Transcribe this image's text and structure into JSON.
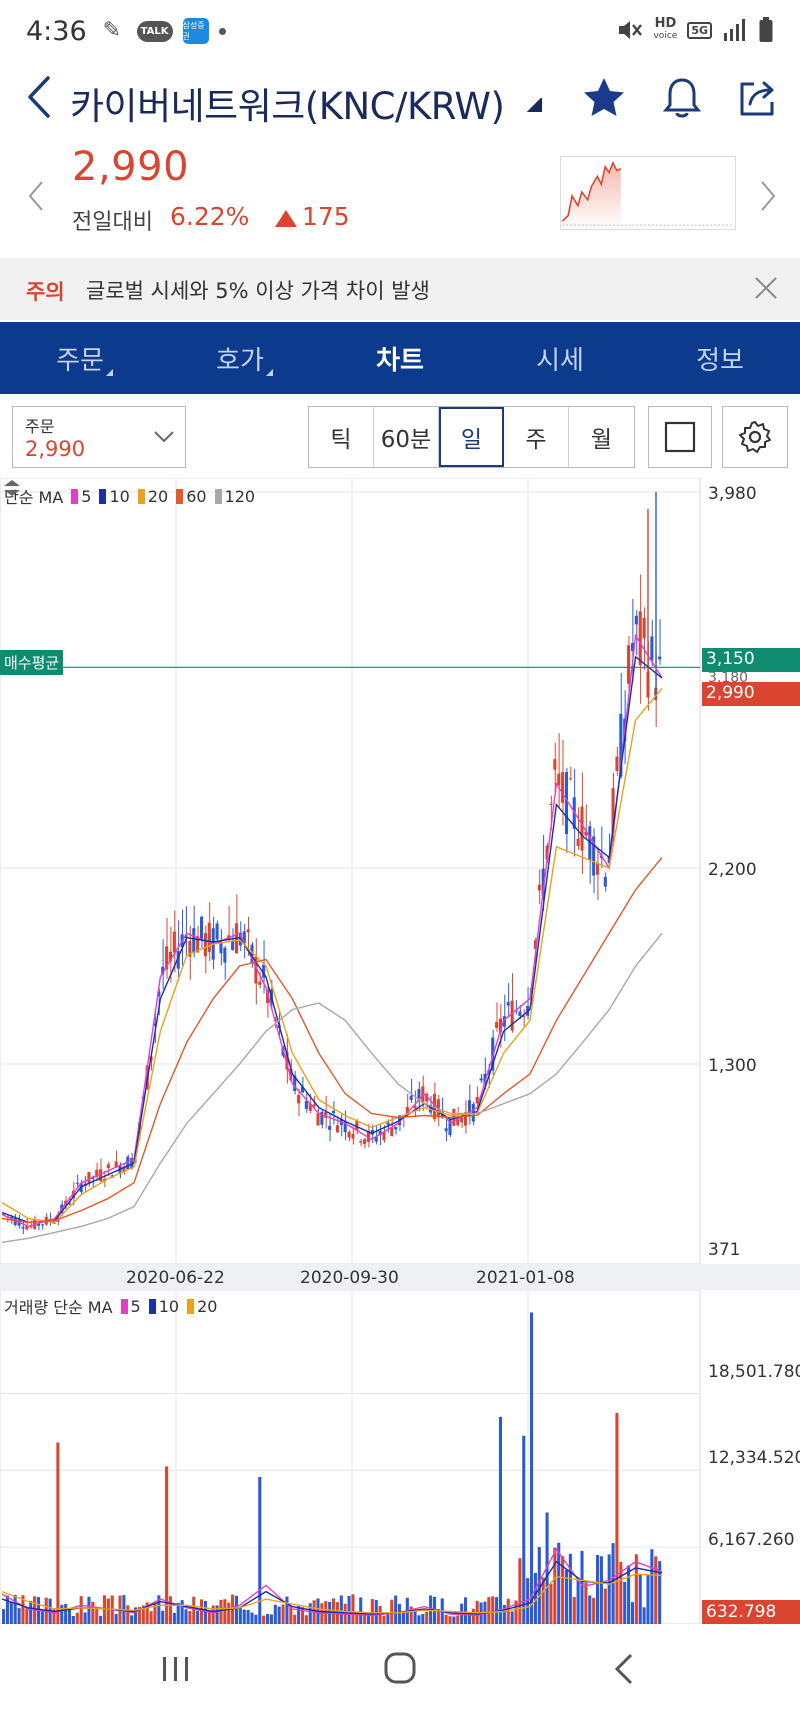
{
  "status": {
    "time": "4:36",
    "talk": "TALK",
    "app_badge": "삼성증권",
    "hd": "HD",
    "voice": "voice",
    "net": "5G"
  },
  "header": {
    "title": "카이버네트워크(KNC/KRW)"
  },
  "price": {
    "current": "2,990",
    "change_label": "전일대비",
    "change_pct": "6.22%",
    "change_value": "175"
  },
  "notice": {
    "tag": "주의",
    "text": "글로벌 시세와 5% 이상 가격 차이 발생"
  },
  "tabs": [
    {
      "label": "주문"
    },
    {
      "label": "호가"
    },
    {
      "label": "차트"
    },
    {
      "label": "시세"
    },
    {
      "label": "정보"
    }
  ],
  "toolbar": {
    "order_label": "주문",
    "order_value": "2,990",
    "periods": [
      {
        "label": "틱"
      },
      {
        "label": "60분"
      },
      {
        "label": "일"
      },
      {
        "label": "주"
      },
      {
        "label": "월"
      }
    ]
  },
  "chart": {
    "price_legend_prefix": "단순 MA",
    "price_legend": [
      {
        "label": "5",
        "color": "#e43fc4"
      },
      {
        "label": "10",
        "color": "#1a2fa8"
      },
      {
        "label": "20",
        "color": "#e8a317"
      },
      {
        "label": "60",
        "color": "#e4582a"
      },
      {
        "label": "120",
        "color": "#a8a8a8"
      }
    ],
    "price_axis": [
      "3,980",
      "2,200",
      "1,300",
      "371"
    ],
    "partial_label": "3,180",
    "avg_label": "매수평균",
    "avg_price": "3,150",
    "last_price": "2,990",
    "dates": [
      "2020-06-22",
      "2020-09-30",
      "2021-01-08"
    ],
    "volume_legend_prefix": "거래량 단순 MA",
    "volume_legend": [
      {
        "label": "5",
        "color": "#e43fc4"
      },
      {
        "label": "10",
        "color": "#1a2fa8"
      },
      {
        "label": "20",
        "color": "#e8a317"
      }
    ],
    "volume_axis": [
      "18,501.780",
      "12,334.520",
      "6,167.260"
    ],
    "last_volume": "632.798"
  },
  "colors": {
    "accent": "#0c3a8d",
    "up": "#d9452f",
    "down": "#2a5bd7",
    "avg_line": "#0f8c70"
  },
  "chart_data": {
    "type": "line",
    "x_ticks": [
      "2020-06-22",
      "2020-09-30",
      "2021-01-08"
    ],
    "y_ticks": [
      3980,
      2200,
      1300,
      371
    ],
    "volume_ticks": [
      18501.78,
      12334.52,
      6167.26
    ],
    "reference_lines": [
      {
        "label": "매수평균",
        "value": 3150
      }
    ],
    "last_price": 2990,
    "last_volume": 632.798,
    "series": [
      {
        "name": "5",
        "values": [
          540,
          480,
          520,
          700,
          760,
          820,
          1700,
          1900,
          1850,
          1900,
          1650,
          1200,
          1050,
          1000,
          920,
          1000,
          1150,
          1000,
          1080,
          1500,
          1600,
          2600,
          2400,
          2200,
          3300,
          3100
        ]
      },
      {
        "name": "10",
        "values": [
          550,
          500,
          510,
          680,
          740,
          800,
          1600,
          1880,
          1860,
          1880,
          1700,
          1250,
          1080,
          1010,
          950,
          1010,
          1100,
          1020,
          1060,
          1450,
          1550,
          2500,
          2350,
          2250,
          3200,
          3100
        ]
      },
      {
        "name": "20",
        "values": [
          600,
          520,
          500,
          640,
          720,
          780,
          1450,
          1800,
          1850,
          1870,
          1750,
          1350,
          1120,
          1040,
          980,
          1030,
          1080,
          1040,
          1050,
          1350,
          1500,
          2300,
          2250,
          2200,
          2900,
          3050
        ]
      },
      {
        "name": "60",
        "values": [
          520,
          500,
          510,
          560,
          620,
          700,
          1100,
          1400,
          1600,
          1750,
          1780,
          1600,
          1350,
          1150,
          1050,
          1030,
          1040,
          1030,
          1040,
          1150,
          1250,
          1500,
          1700,
          1900,
          2100,
          2250
        ]
      },
      {
        "name": "120",
        "values": [
          400,
          420,
          450,
          480,
          520,
          580,
          800,
          1000,
          1150,
          1300,
          1450,
          1550,
          1580,
          1500,
          1350,
          1200,
          1100,
          1050,
          1050,
          1100,
          1150,
          1250,
          1400,
          1550,
          1750,
          1900
        ]
      }
    ]
  }
}
